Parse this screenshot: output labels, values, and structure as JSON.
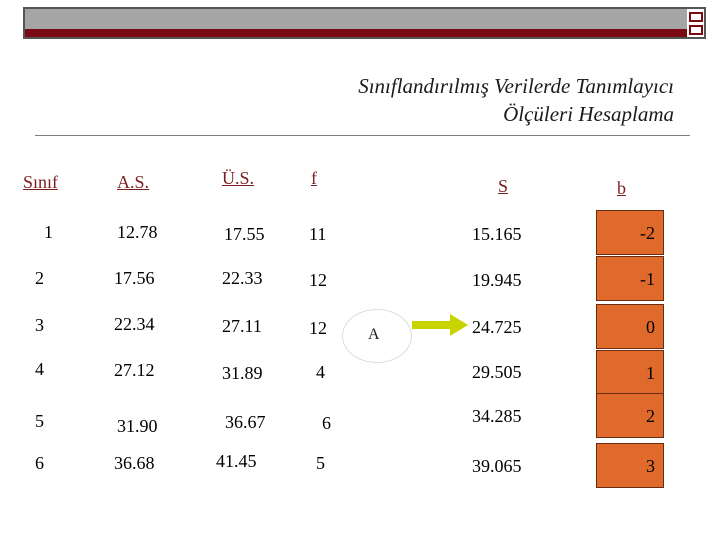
{
  "title": {
    "line1": "Sınıflandırılmış Verilerde Tanımlayıcı",
    "line2": "Ölçüleri Hesaplama"
  },
  "headers": {
    "sinif": "Sınıf",
    "as": "A.S.",
    "us": "Ü.S.",
    "f": "f",
    "s": "S",
    "b": "b"
  },
  "rows": [
    {
      "sinif": "1",
      "as": "12.78",
      "us": "17.55",
      "f": "11",
      "s": "15.165",
      "b": "-2"
    },
    {
      "sinif": "2",
      "as": "17.56",
      "us": "22.33",
      "f": "12",
      "s": "19.945",
      "b": "-1"
    },
    {
      "sinif": "3",
      "as": "22.34",
      "us": "27.11",
      "f": "12",
      "s": "24.725",
      "b": "0"
    },
    {
      "sinif": "4",
      "as": "27.12",
      "us": "31.89",
      "f": "4",
      "s": "29.505",
      "b": "1"
    },
    {
      "sinif": "5",
      "as": "31.90",
      "us": "36.67",
      "f": "6",
      "s": "34.285",
      "b": "2"
    },
    {
      "sinif": "6",
      "as": "36.68",
      "us": "41.45",
      "f": "5",
      "s": "39.065",
      "b": "3"
    }
  ],
  "marker": {
    "label": "A"
  },
  "colors": {
    "box_fill": "#e06a2c",
    "arrow": "#c8d400",
    "header_text": "#7a1f1f",
    "top_strip_red": "#7a0a12"
  }
}
